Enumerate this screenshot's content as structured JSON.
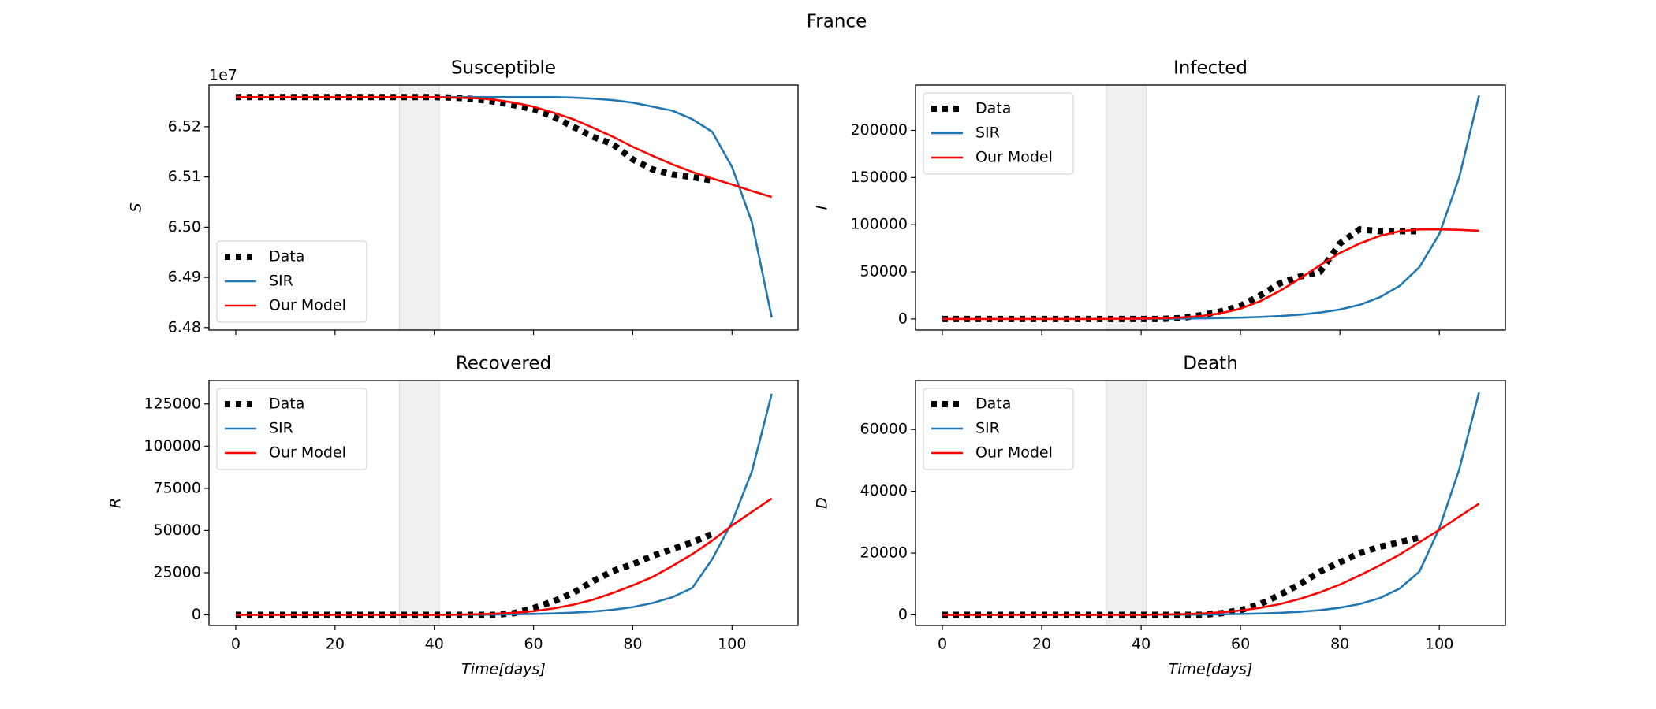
{
  "title": "France",
  "chart_data": [
    {
      "type": "line",
      "title": "Susceptible",
      "ylabel": "S",
      "offset_label": "1e7",
      "show_xtick_labels": false,
      "x": [
        0,
        4,
        8,
        12,
        16,
        20,
        24,
        28,
        32,
        36,
        40,
        44,
        48,
        52,
        56,
        60,
        64,
        68,
        72,
        76,
        80,
        84,
        88,
        92,
        96,
        100,
        104,
        108
      ],
      "xlim": [
        -5.4,
        113.3
      ],
      "xticks": [
        0,
        20,
        40,
        60,
        80,
        100
      ],
      "ylim": [
        64795000,
        65283000
      ],
      "yticks": [
        {
          "value": 64800000,
          "label": "6.48"
        },
        {
          "value": 64900000,
          "label": "6.49"
        },
        {
          "value": 65000000,
          "label": "6.50"
        },
        {
          "value": 65100000,
          "label": "6.51"
        },
        {
          "value": 65200000,
          "label": "6.52"
        }
      ],
      "shade": [
        33,
        41
      ],
      "shade_color": "#f0f0f0",
      "legend": "lower left",
      "series": [
        {
          "name": "Data",
          "color": "#000000",
          "style": "dotted",
          "values": [
            65259000,
            65259000,
            65259000,
            65259000,
            65259000,
            65259000,
            65259000,
            65259000,
            65259000,
            65259000,
            65259000,
            65258000,
            65255000,
            65250000,
            65243000,
            65235000,
            65220000,
            65200000,
            65180000,
            65165000,
            65135000,
            65115000,
            65105000,
            65100000,
            65093000,
            null,
            null,
            null
          ]
        },
        {
          "name": "SIR",
          "color": "#1f77b4",
          "style": "solid",
          "values": [
            65259000,
            65259000,
            65259000,
            65259000,
            65259000,
            65259000,
            65259000,
            65259000,
            65259000,
            65259000,
            65259000,
            65259000,
            65259000,
            65259000,
            65259000,
            65259000,
            65259000,
            65258000,
            65256000,
            65253000,
            65248000,
            65240000,
            65232000,
            65215000,
            65190000,
            65120000,
            65010000,
            64820000
          ]
        },
        {
          "name": "Our Model",
          "color": "#ff0000",
          "style": "solid",
          "values": [
            65259000,
            65259000,
            65259000,
            65259000,
            65259000,
            65259000,
            65259000,
            65259000,
            65259000,
            65259000,
            65259000,
            65258000,
            65257000,
            65254000,
            65248000,
            65240000,
            65228000,
            65215000,
            65198000,
            65180000,
            65160000,
            65142000,
            65125000,
            65110000,
            65097000,
            65085000,
            65072000,
            65060000
          ]
        }
      ]
    },
    {
      "type": "line",
      "title": "Infected",
      "ylabel": "I",
      "show_xtick_labels": false,
      "x": [
        0,
        4,
        8,
        12,
        16,
        20,
        24,
        28,
        32,
        36,
        40,
        44,
        48,
        52,
        56,
        60,
        64,
        68,
        72,
        76,
        80,
        84,
        88,
        92,
        96,
        100,
        104,
        108
      ],
      "xlim": [
        -5.4,
        113.3
      ],
      "xticks": [
        0,
        20,
        40,
        60,
        80,
        100
      ],
      "ylim": [
        -11800,
        248000
      ],
      "yticks": [
        0,
        50000,
        100000,
        150000,
        200000
      ],
      "shade": [
        33,
        41
      ],
      "shade_color": "#f0f0f0",
      "legend": "upper left",
      "series": [
        {
          "name": "Data",
          "color": "#000000",
          "style": "dotted",
          "values": [
            0,
            0,
            0,
            0,
            0,
            0,
            0,
            0,
            0,
            0,
            0,
            0,
            1000,
            4000,
            8000,
            14000,
            25000,
            38000,
            45000,
            50000,
            80000,
            95000,
            93000,
            93000,
            93000,
            null,
            null,
            null
          ]
        },
        {
          "name": "SIR",
          "color": "#1f77b4",
          "style": "solid",
          "values": [
            0,
            0,
            0,
            0,
            0,
            10,
            20,
            40,
            80,
            130,
            200,
            300,
            450,
            650,
            950,
            1400,
            2100,
            3100,
            4600,
            6800,
            10000,
            15000,
            23000,
            35000,
            55000,
            90000,
            150000,
            237000
          ]
        },
        {
          "name": "Our Model",
          "color": "#ff0000",
          "style": "solid",
          "values": [
            0,
            0,
            0,
            0,
            0,
            0,
            0,
            0,
            100,
            200,
            400,
            800,
            1500,
            3000,
            6000,
            11000,
            19000,
            30000,
            43000,
            57000,
            70000,
            80000,
            88000,
            93000,
            95000,
            95000,
            94500,
            93500
          ]
        }
      ]
    },
    {
      "type": "line",
      "title": "Recovered",
      "ylabel": "R",
      "xlabel": "Time[days]",
      "show_xtick_labels": true,
      "x": [
        0,
        4,
        8,
        12,
        16,
        20,
        24,
        28,
        32,
        36,
        40,
        44,
        48,
        52,
        56,
        60,
        64,
        68,
        72,
        76,
        80,
        84,
        88,
        92,
        96,
        100,
        104,
        108
      ],
      "xlim": [
        -5.4,
        113.3
      ],
      "xticks": [
        0,
        20,
        40,
        60,
        80,
        100
      ],
      "ylim": [
        -6300,
        138900
      ],
      "yticks": [
        0,
        25000,
        50000,
        75000,
        100000,
        125000
      ],
      "shade": [
        33,
        41
      ],
      "shade_color": "#f0f0f0",
      "legend": "upper left",
      "series": [
        {
          "name": "Data",
          "color": "#000000",
          "style": "dotted",
          "values": [
            0,
            0,
            0,
            0,
            0,
            0,
            0,
            0,
            0,
            0,
            0,
            0,
            0,
            0,
            1000,
            4000,
            8000,
            13000,
            20000,
            26000,
            30000,
            35000,
            39000,
            43000,
            48000,
            null,
            null,
            null
          ]
        },
        {
          "name": "SIR",
          "color": "#1f77b4",
          "style": "solid",
          "values": [
            0,
            0,
            0,
            0,
            0,
            0,
            0,
            0,
            0,
            0,
            0,
            50,
            100,
            200,
            350,
            550,
            850,
            1300,
            2000,
            3000,
            4600,
            7000,
            10500,
            16000,
            33000,
            55000,
            85000,
            131000
          ]
        },
        {
          "name": "Our Model",
          "color": "#ff0000",
          "style": "solid",
          "values": [
            0,
            0,
            0,
            0,
            0,
            0,
            0,
            0,
            0,
            0,
            0,
            100,
            300,
            600,
            1200,
            2200,
            3800,
            6000,
            9000,
            13000,
            17500,
            22500,
            29000,
            36000,
            44000,
            53000,
            61000,
            69000
          ]
        }
      ]
    },
    {
      "type": "line",
      "title": "Death",
      "ylabel": "D",
      "xlabel": "Time[days]",
      "show_xtick_labels": true,
      "x": [
        0,
        4,
        8,
        12,
        16,
        20,
        24,
        28,
        32,
        36,
        40,
        44,
        48,
        52,
        56,
        60,
        64,
        68,
        72,
        76,
        80,
        84,
        88,
        92,
        96,
        100,
        104,
        108
      ],
      "xlim": [
        -5.4,
        113.3
      ],
      "xticks": [
        0,
        20,
        40,
        60,
        80,
        100
      ],
      "ylim": [
        -3450,
        75860
      ],
      "yticks": [
        0,
        20000,
        40000,
        60000
      ],
      "shade": [
        33,
        41
      ],
      "shade_color": "#f0f0f0",
      "legend": "upper left",
      "series": [
        {
          "name": "Data",
          "color": "#000000",
          "style": "dotted",
          "values": [
            0,
            0,
            0,
            0,
            0,
            0,
            0,
            0,
            0,
            0,
            0,
            0,
            0,
            0,
            500,
            1500,
            3500,
            6500,
            10000,
            14000,
            17000,
            20000,
            22000,
            23500,
            25000,
            null,
            null,
            null
          ]
        },
        {
          "name": "SIR",
          "color": "#1f77b4",
          "style": "solid",
          "values": [
            0,
            0,
            0,
            0,
            0,
            0,
            0,
            0,
            0,
            0,
            0,
            30,
            60,
            100,
            170,
            280,
            430,
            650,
            1000,
            1500,
            2300,
            3500,
            5400,
            8500,
            14000,
            28000,
            47000,
            72000
          ]
        },
        {
          "name": "Our Model",
          "color": "#ff0000",
          "style": "solid",
          "values": [
            0,
            0,
            0,
            0,
            0,
            0,
            0,
            0,
            0,
            0,
            0,
            100,
            200,
            400,
            800,
            1400,
            2300,
            3500,
            5200,
            7300,
            9800,
            12800,
            16000,
            19500,
            23500,
            27500,
            31800,
            36000
          ]
        }
      ]
    }
  ]
}
